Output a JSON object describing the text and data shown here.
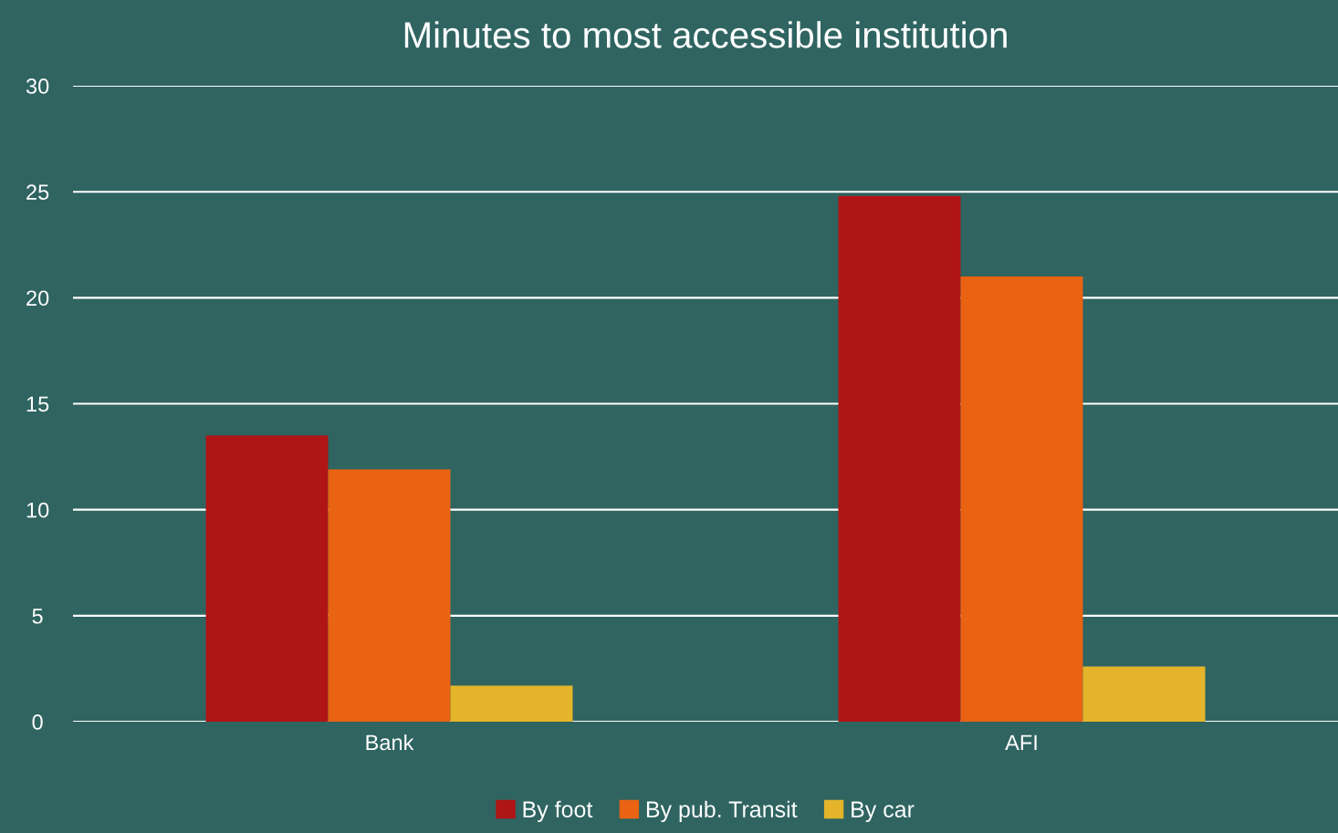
{
  "chart_data": {
    "type": "bar",
    "title": "Minutes to most accessible institution",
    "categories": [
      "Bank",
      "AFI"
    ],
    "series": [
      {
        "name": "By foot",
        "color": "#b01515",
        "values": [
          13.5,
          24.8
        ]
      },
      {
        "name": "By pub. Transit",
        "color": "#e96313",
        "values": [
          11.9,
          21.0
        ]
      },
      {
        "name": "By car",
        "color": "#e4b52a",
        "values": [
          1.7,
          2.6
        ]
      }
    ],
    "ylim": [
      0,
      30
    ],
    "yticks": [
      0,
      5,
      10,
      15,
      20,
      25,
      30
    ],
    "grid": "y",
    "legend": "bottom"
  }
}
